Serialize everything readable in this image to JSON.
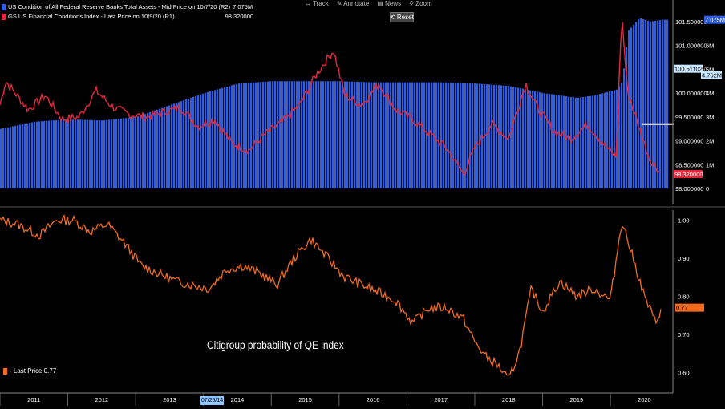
{
  "toolbar": {
    "track_label": "Track",
    "annotate_label": "Annotate",
    "news_label": "News",
    "zoom_label": "Zoom",
    "reset_label": "Reset"
  },
  "legend_top": {
    "series1": "US Condition of All Federal Reserve Banks Total Assets - Mid Price on 10/7/20 (R2)",
    "series1_value": "7.075M",
    "series2": "GS US Financial Conditions Index - Last Price on 10/9/20 (R1)",
    "series2_value": "98.320000"
  },
  "legend_bottom": {
    "label": "- Last Price 0.77"
  },
  "annotation": "Citigroup probability of QE index",
  "date_marker": "07/25/14",
  "colors": {
    "background": "#000000",
    "bar_blue": "#2f5fe0",
    "gs_red": "#e8283c",
    "citi_orange": "#f36b1c",
    "axis_text": "#ffffff"
  },
  "chart_data": [
    {
      "type": "bar",
      "panel": "top",
      "title": "",
      "series": [
        {
          "name": "US Condition of All Federal Reserve Banks Total Assets",
          "axis": "R2",
          "x": [
            "2011-01",
            "2011-07",
            "2012-01",
            "2012-07",
            "2013-01",
            "2013-07",
            "2014-01",
            "2014-07",
            "2015-01",
            "2015-07",
            "2016-01",
            "2016-07",
            "2017-01",
            "2017-07",
            "2018-01",
            "2018-07",
            "2019-01",
            "2019-07",
            "2019-10",
            "2020-02",
            "2020-03",
            "2020-04",
            "2020-06",
            "2020-08",
            "2020-10"
          ],
          "values": [
            2.5,
            2.8,
            2.9,
            2.85,
            3.0,
            3.5,
            4.0,
            4.4,
            4.5,
            4.5,
            4.5,
            4.45,
            4.45,
            4.45,
            4.4,
            4.3,
            4.0,
            3.8,
            3.9,
            4.15,
            4.5,
            6.6,
            7.15,
            7.0,
            7.075
          ]
        },
        {
          "name": "GS US Financial Conditions Index",
          "axis": "R1",
          "type": "line",
          "x": [
            "2011-01",
            "2011-02",
            "2011-06",
            "2011-09",
            "2011-12",
            "2012-03",
            "2012-06",
            "2012-09",
            "2012-12",
            "2013-03",
            "2013-06",
            "2013-09",
            "2013-12",
            "2014-03",
            "2014-06",
            "2014-09",
            "2014-12",
            "2015-03",
            "2015-06",
            "2015-09",
            "2015-12",
            "2016-02",
            "2016-05",
            "2016-08",
            "2016-11",
            "2017-02",
            "2017-05",
            "2017-08",
            "2017-11",
            "2018-01",
            "2018-04",
            "2018-07",
            "2018-10",
            "2018-12",
            "2019-03",
            "2019-06",
            "2019-09",
            "2019-12",
            "2020-02",
            "2020-03",
            "2020-04",
            "2020-06",
            "2020-08",
            "2020-10"
          ],
          "values": [
            99.75,
            100.25,
            99.65,
            99.95,
            99.45,
            99.5,
            100.05,
            99.7,
            99.55,
            99.5,
            99.6,
            99.7,
            99.3,
            99.45,
            98.95,
            98.8,
            99.15,
            99.4,
            99.75,
            100.4,
            100.9,
            99.95,
            99.75,
            100.2,
            99.65,
            99.45,
            99.15,
            98.85,
            98.3,
            98.85,
            99.35,
            99.05,
            100.2,
            99.7,
            99.2,
            99.05,
            99.35,
            98.9,
            98.65,
            101.65,
            100.05,
            99.3,
            98.6,
            98.32
          ]
        }
      ],
      "y_axis_R1": {
        "ylim": [
          98.0,
          101.75
        ],
        "ticks": [
          "98.000000",
          "98.500000",
          "99.000000",
          "99.500000",
          "100.000000",
          "100.500000",
          "101.000000",
          "101.500000"
        ]
      },
      "y_axis_R2": {
        "ylim": [
          0,
          7.5
        ],
        "ticks": [
          "0",
          "1M",
          "2M",
          "3M",
          "4M",
          "5M",
          "6M"
        ]
      },
      "value_labels": [
        {
          "series": "US Condition of All Federal Reserve Banks Total Assets",
          "text": "7.075M"
        },
        {
          "series": "GS US Financial Conditions Index",
          "text": "98.320000"
        },
        {
          "text": "100.511026"
        },
        {
          "text": "4.762M"
        }
      ]
    },
    {
      "type": "line",
      "panel": "bottom",
      "series": [
        {
          "name": "Last Price",
          "x": [
            "2011-01",
            "2011-04",
            "2011-08",
            "2011-11",
            "2012-02",
            "2012-05",
            "2012-08",
            "2012-11",
            "2013-02",
            "2013-05",
            "2013-08",
            "2013-11",
            "2014-02",
            "2014-05",
            "2014-08",
            "2014-11",
            "2015-02",
            "2015-05",
            "2015-08",
            "2015-11",
            "2016-02",
            "2016-05",
            "2016-08",
            "2016-11",
            "2017-02",
            "2017-05",
            "2017-08",
            "2017-11",
            "2018-01",
            "2018-03",
            "2018-05",
            "2018-07",
            "2018-09",
            "2018-11",
            "2019-01",
            "2019-04",
            "2019-07",
            "2019-10",
            "2020-01",
            "2020-03",
            "2020-05",
            "2020-07",
            "2020-09",
            "2020-10"
          ],
          "values": [
            1.0,
            0.99,
            0.96,
            1.0,
            1.0,
            0.97,
            0.99,
            0.94,
            0.88,
            0.86,
            0.84,
            0.83,
            0.82,
            0.87,
            0.88,
            0.86,
            0.83,
            0.9,
            0.95,
            0.9,
            0.85,
            0.83,
            0.81,
            0.79,
            0.73,
            0.77,
            0.77,
            0.74,
            0.68,
            0.64,
            0.62,
            0.58,
            0.66,
            0.82,
            0.76,
            0.84,
            0.8,
            0.82,
            0.79,
            1.0,
            0.9,
            0.8,
            0.73,
            0.77
          ]
        }
      ],
      "ylim": [
        0.55,
        1.02
      ],
      "y_ticks": [
        "0.60",
        "0.70",
        "0.80",
        "0.90",
        "1.00"
      ],
      "last_value_label": "0.77"
    }
  ],
  "x_axis": {
    "labels": [
      "2011",
      "2012",
      "2013",
      "2014",
      "2015",
      "2016",
      "2017",
      "2018",
      "2019",
      "2020"
    ]
  }
}
